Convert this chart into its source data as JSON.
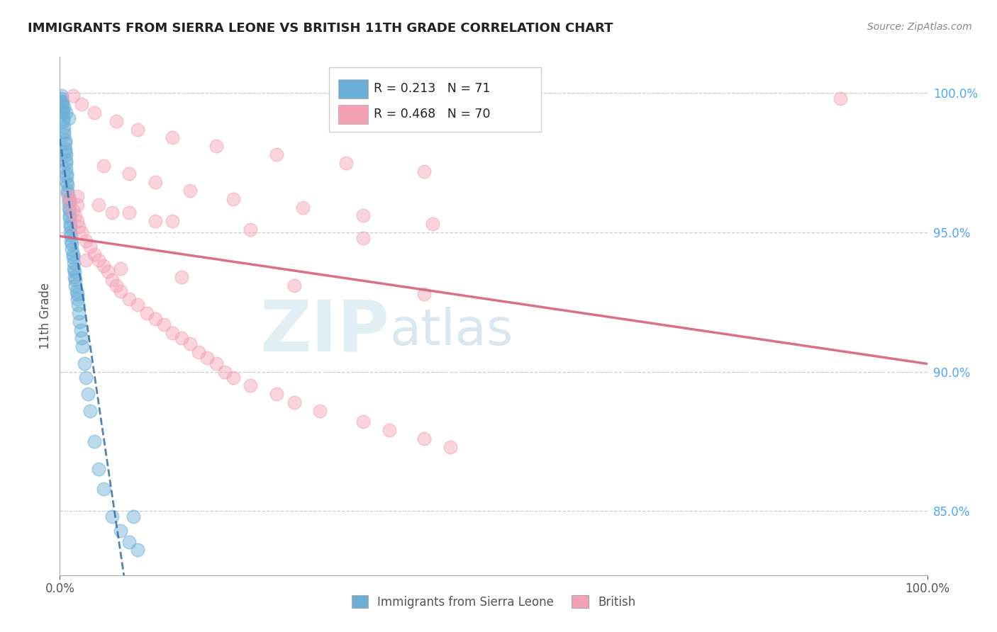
{
  "title": "IMMIGRANTS FROM SIERRA LEONE VS BRITISH 11TH GRADE CORRELATION CHART",
  "source": "Source: ZipAtlas.com",
  "ylabel": "11th Grade",
  "yaxis_labels": [
    "85.0%",
    "90.0%",
    "95.0%",
    "100.0%"
  ],
  "yaxis_values": [
    0.85,
    0.9,
    0.95,
    1.0
  ],
  "xlim": [
    0.0,
    1.0
  ],
  "ylim": [
    0.827,
    1.013
  ],
  "legend_blue_R": "0.213",
  "legend_blue_N": "71",
  "legend_pink_R": "0.468",
  "legend_pink_N": "70",
  "blue_color": "#6aaed6",
  "pink_color": "#f4a0b5",
  "blue_line_color": "#3070a8",
  "pink_line_color": "#d9607a",
  "watermark_zip": "ZIP",
  "watermark_atlas": "atlas",
  "legend_R_color": "#2288cc",
  "legend_N_color": "#cc2244",
  "blue_x": [
    0.001,
    0.002,
    0.003,
    0.003,
    0.004,
    0.004,
    0.004,
    0.005,
    0.005,
    0.005,
    0.006,
    0.006,
    0.006,
    0.006,
    0.007,
    0.007,
    0.007,
    0.007,
    0.008,
    0.008,
    0.008,
    0.009,
    0.009,
    0.009,
    0.01,
    0.01,
    0.01,
    0.011,
    0.011,
    0.011,
    0.012,
    0.012,
    0.012,
    0.013,
    0.013,
    0.014,
    0.014,
    0.015,
    0.015,
    0.016,
    0.016,
    0.017,
    0.017,
    0.018,
    0.018,
    0.019,
    0.02,
    0.02,
    0.021,
    0.022,
    0.023,
    0.024,
    0.025,
    0.026,
    0.028,
    0.03,
    0.032,
    0.035,
    0.04,
    0.045,
    0.05,
    0.06,
    0.07,
    0.08,
    0.09,
    0.002,
    0.003,
    0.005,
    0.007,
    0.01,
    0.085
  ],
  "blue_y": [
    0.998,
    0.997,
    0.996,
    0.994,
    0.993,
    0.991,
    0.99,
    0.988,
    0.986,
    0.985,
    0.983,
    0.982,
    0.98,
    0.979,
    0.978,
    0.976,
    0.975,
    0.973,
    0.971,
    0.97,
    0.968,
    0.967,
    0.965,
    0.964,
    0.962,
    0.961,
    0.959,
    0.958,
    0.956,
    0.955,
    0.953,
    0.952,
    0.95,
    0.949,
    0.947,
    0.946,
    0.944,
    0.942,
    0.941,
    0.939,
    0.937,
    0.936,
    0.934,
    0.933,
    0.931,
    0.929,
    0.928,
    0.926,
    0.924,
    0.921,
    0.918,
    0.915,
    0.912,
    0.909,
    0.903,
    0.898,
    0.892,
    0.886,
    0.875,
    0.865,
    0.858,
    0.848,
    0.843,
    0.839,
    0.836,
    0.999,
    0.997,
    0.995,
    0.993,
    0.991,
    0.848
  ],
  "pink_x": [
    0.01,
    0.012,
    0.015,
    0.018,
    0.02,
    0.022,
    0.025,
    0.03,
    0.035,
    0.04,
    0.045,
    0.05,
    0.055,
    0.06,
    0.065,
    0.07,
    0.08,
    0.09,
    0.1,
    0.11,
    0.12,
    0.13,
    0.14,
    0.15,
    0.16,
    0.17,
    0.18,
    0.19,
    0.2,
    0.22,
    0.25,
    0.27,
    0.3,
    0.35,
    0.38,
    0.42,
    0.45,
    0.05,
    0.08,
    0.11,
    0.15,
    0.2,
    0.28,
    0.35,
    0.43,
    0.015,
    0.025,
    0.04,
    0.065,
    0.09,
    0.13,
    0.18,
    0.25,
    0.33,
    0.42,
    0.02,
    0.045,
    0.08,
    0.13,
    0.22,
    0.35,
    0.9,
    0.03,
    0.07,
    0.14,
    0.27,
    0.42,
    0.02,
    0.06,
    0.11
  ],
  "pink_y": [
    0.963,
    0.961,
    0.958,
    0.956,
    0.954,
    0.952,
    0.95,
    0.947,
    0.945,
    0.942,
    0.94,
    0.938,
    0.936,
    0.933,
    0.931,
    0.929,
    0.926,
    0.924,
    0.921,
    0.919,
    0.917,
    0.914,
    0.912,
    0.91,
    0.907,
    0.905,
    0.903,
    0.9,
    0.898,
    0.895,
    0.892,
    0.889,
    0.886,
    0.882,
    0.879,
    0.876,
    0.873,
    0.974,
    0.971,
    0.968,
    0.965,
    0.962,
    0.959,
    0.956,
    0.953,
    0.999,
    0.996,
    0.993,
    0.99,
    0.987,
    0.984,
    0.981,
    0.978,
    0.975,
    0.972,
    0.963,
    0.96,
    0.957,
    0.954,
    0.951,
    0.948,
    0.998,
    0.94,
    0.937,
    0.934,
    0.931,
    0.928,
    0.96,
    0.957,
    0.954
  ]
}
